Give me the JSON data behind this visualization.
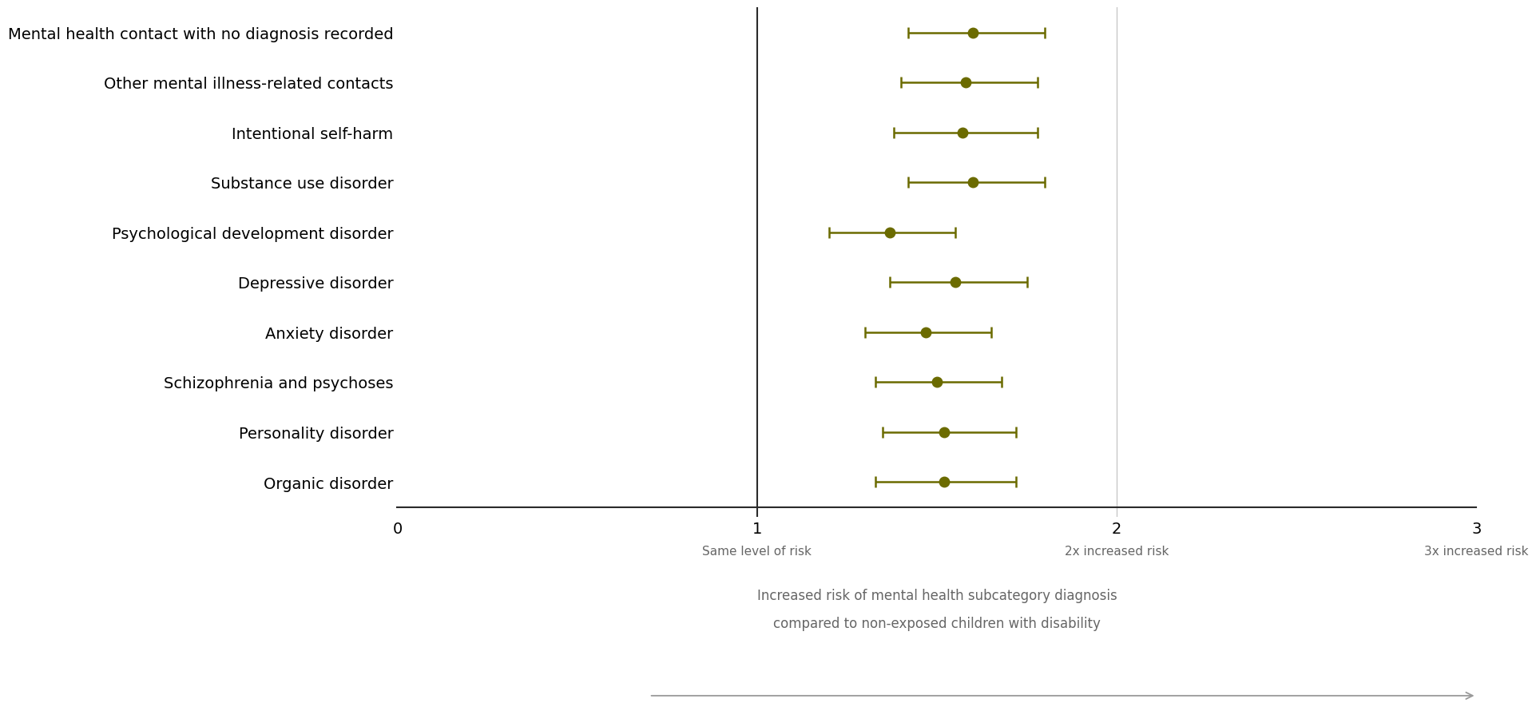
{
  "categories": [
    "Mental health contact with no diagnosis recorded",
    "Other mental illness-related contacts",
    "Intentional self-harm",
    "Substance use disorder",
    "Psychological development disorder",
    "Depressive disorder",
    "Anxiety disorder",
    "Schizophrenia and psychoses",
    "Personality disorder",
    "Organic disorder"
  ],
  "point_estimates": [
    1.6,
    1.58,
    1.57,
    1.6,
    1.37,
    1.55,
    1.47,
    1.5,
    1.52,
    1.52
  ],
  "ci_lower": [
    1.42,
    1.4,
    1.38,
    1.42,
    1.2,
    1.37,
    1.3,
    1.33,
    1.35,
    1.33
  ],
  "ci_upper": [
    1.8,
    1.78,
    1.78,
    1.8,
    1.55,
    1.75,
    1.65,
    1.68,
    1.72,
    1.72
  ],
  "dot_color": "#6b6b00",
  "line_color": "#6b6b00",
  "ref_line_x": 1.0,
  "xlim": [
    0,
    3
  ],
  "xticks": [
    0,
    1,
    2,
    3
  ],
  "subtitle_1": "Same level of risk",
  "subtitle_2": "2x increased risk",
  "subtitle_3": "3x increased risk",
  "xlabel_line1": "Increased risk of mental health subcategory diagnosis",
  "xlabel_line2": "compared to non-exposed children with disability",
  "background_color": "#ffffff",
  "grid_color": "#c8c8c8",
  "font_color_labels": "#000000",
  "font_color_axis": "#666666",
  "capsize": 5,
  "arrow_color": "#999999"
}
